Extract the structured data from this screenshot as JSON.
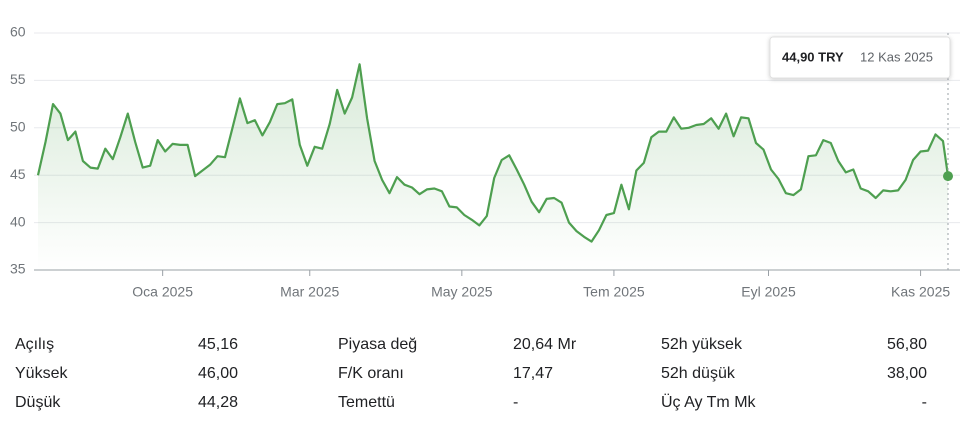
{
  "chart_data": {
    "type": "line",
    "x": [
      "2024-11-12",
      "2024-11-15",
      "2024-11-18",
      "2024-11-21",
      "2024-11-24",
      "2024-11-27",
      "2024-11-30",
      "2024-12-03",
      "2024-12-06",
      "2024-12-09",
      "2024-12-12",
      "2024-12-15",
      "2024-12-18",
      "2024-12-21",
      "2024-12-24",
      "2024-12-27",
      "2024-12-30",
      "2025-01-02",
      "2025-01-05",
      "2025-01-08",
      "2025-01-11",
      "2025-01-14",
      "2025-01-17",
      "2025-01-20",
      "2025-01-23",
      "2025-01-26",
      "2025-01-29",
      "2025-02-01",
      "2025-02-04",
      "2025-02-07",
      "2025-02-10",
      "2025-02-13",
      "2025-02-16",
      "2025-02-19",
      "2025-02-22",
      "2025-02-25",
      "2025-02-28",
      "2025-03-03",
      "2025-03-06",
      "2025-03-09",
      "2025-03-12",
      "2025-03-15",
      "2025-03-18",
      "2025-03-21",
      "2025-03-24",
      "2025-03-27",
      "2025-03-30",
      "2025-04-02",
      "2025-04-05",
      "2025-04-08",
      "2025-04-11",
      "2025-04-14",
      "2025-04-17",
      "2025-04-20",
      "2025-04-23",
      "2025-04-26",
      "2025-04-29",
      "2025-05-02",
      "2025-05-05",
      "2025-05-08",
      "2025-05-11",
      "2025-05-14",
      "2025-05-17",
      "2025-05-20",
      "2025-05-23",
      "2025-05-26",
      "2025-05-29",
      "2025-06-01",
      "2025-06-04",
      "2025-06-07",
      "2025-06-10",
      "2025-06-13",
      "2025-06-16",
      "2025-06-19",
      "2025-06-22",
      "2025-06-25",
      "2025-06-28",
      "2025-07-01",
      "2025-07-04",
      "2025-07-07",
      "2025-07-10",
      "2025-07-13",
      "2025-07-16",
      "2025-07-19",
      "2025-07-22",
      "2025-07-25",
      "2025-07-28",
      "2025-07-31",
      "2025-08-03",
      "2025-08-06",
      "2025-08-09",
      "2025-08-12",
      "2025-08-15",
      "2025-08-18",
      "2025-08-21",
      "2025-08-24",
      "2025-08-27",
      "2025-08-30",
      "2025-09-02",
      "2025-09-05",
      "2025-09-08",
      "2025-09-11",
      "2025-09-14",
      "2025-09-17",
      "2025-09-20",
      "2025-09-23",
      "2025-09-26",
      "2025-09-29",
      "2025-10-02",
      "2025-10-05",
      "2025-10-08",
      "2025-10-11",
      "2025-10-14",
      "2025-10-17",
      "2025-10-20",
      "2025-10-23",
      "2025-10-26",
      "2025-10-29",
      "2025-11-01",
      "2025-11-04",
      "2025-11-07",
      "2025-11-10",
      "2025-11-12"
    ],
    "series": [
      {
        "name": "TRY",
        "color": "#4e9f50",
        "values": [
          45.0,
          48.5,
          52.5,
          51.5,
          48.7,
          49.6,
          46.5,
          45.8,
          45.7,
          47.8,
          46.7,
          49.0,
          51.5,
          48.5,
          45.8,
          46.0,
          48.7,
          47.5,
          48.3,
          48.2,
          48.2,
          44.9,
          45.5,
          46.1,
          47.0,
          46.9,
          50.0,
          53.1,
          50.5,
          50.8,
          49.2,
          50.6,
          52.5,
          52.6,
          53.0,
          48.2,
          46.0,
          48.0,
          47.8,
          50.4,
          54.0,
          51.5,
          53.2,
          56.7,
          51.0,
          46.5,
          44.5,
          43.1,
          44.8,
          44.0,
          43.7,
          43.0,
          43.5,
          43.6,
          43.3,
          41.7,
          41.6,
          40.8,
          40.3,
          39.7,
          40.7,
          44.7,
          46.6,
          47.1,
          45.6,
          44.0,
          42.2,
          41.1,
          42.5,
          42.6,
          42.1,
          40.0,
          39.1,
          38.5,
          38.0,
          39.2,
          40.8,
          41.0,
          44.0,
          41.4,
          45.5,
          46.3,
          49.0,
          49.6,
          49.6,
          51.1,
          49.9,
          50.0,
          50.3,
          50.4,
          51.0,
          49.9,
          51.5,
          49.1,
          51.1,
          51.0,
          48.4,
          47.7,
          45.6,
          44.6,
          43.1,
          42.9,
          43.5,
          47.0,
          47.1,
          48.7,
          48.4,
          46.5,
          45.3,
          45.6,
          43.6,
          43.3,
          42.6,
          43.4,
          43.3,
          43.4,
          44.5,
          46.6,
          47.5,
          47.6,
          49.3,
          48.6,
          44.9
        ]
      }
    ],
    "xlim": [
      "2024-11-12",
      "2025-11-12"
    ],
    "xticks": [
      {
        "value": "2025-01-01",
        "label": "Oca 2025"
      },
      {
        "value": "2025-03-01",
        "label": "Mar 2025"
      },
      {
        "value": "2025-05-01",
        "label": "May 2025"
      },
      {
        "value": "2025-07-01",
        "label": "Tem 2025"
      },
      {
        "value": "2025-09-01",
        "label": "Eyl 2025"
      },
      {
        "value": "2025-11-01",
        "label": "Kas 2025"
      }
    ],
    "ylim": [
      35,
      60
    ],
    "yticks": [
      35,
      40,
      45,
      50,
      55,
      60
    ],
    "grid": true,
    "tooltip": {
      "price": "44,90 TRY",
      "date": "12 Kas 2025"
    }
  },
  "stats": [
    [
      {
        "label": "Açılış",
        "value": "45,16"
      },
      {
        "label": "Yüksek",
        "value": "46,00"
      },
      {
        "label": "Düşük",
        "value": "44,28"
      }
    ],
    [
      {
        "label": "Piyasa değ",
        "value": "20,64 Mr"
      },
      {
        "label": "F/K oranı",
        "value": "17,47"
      },
      {
        "label": "Temettü",
        "value": "-"
      }
    ],
    [
      {
        "label": "52h yüksek",
        "value": "56,80"
      },
      {
        "label": "52h düşük",
        "value": "38,00"
      },
      {
        "label": "Üç Ay Tm Mk",
        "value": "-"
      }
    ]
  ]
}
